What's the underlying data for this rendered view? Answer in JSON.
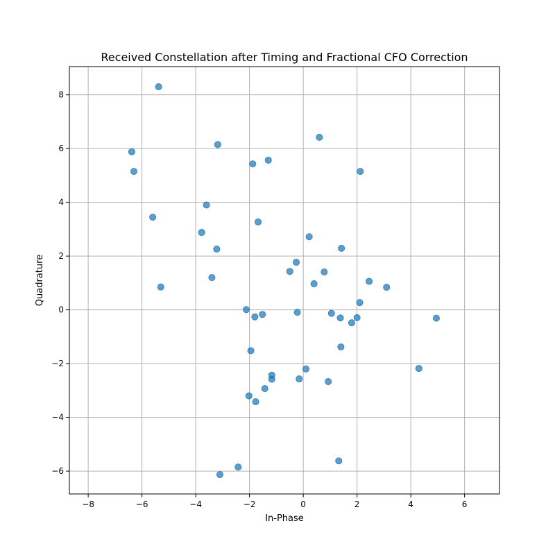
{
  "chart_data": {
    "type": "scatter",
    "title": "Received Constellation after Timing and Fractional CFO Correction",
    "xlabel": "In-Phase",
    "ylabel": "Quadrature",
    "xlim": [
      -8.7,
      7.3
    ],
    "ylim": [
      -6.85,
      9.05
    ],
    "xticks": [
      -8,
      -6,
      -4,
      -2,
      0,
      2,
      4,
      6
    ],
    "yticks": [
      -6,
      -4,
      -2,
      0,
      2,
      4,
      6,
      8
    ],
    "xtick_labels": [
      "−8",
      "−6",
      "−4",
      "−2",
      "0",
      "2",
      "4",
      "6"
    ],
    "ytick_labels": [
      "−6",
      "−4",
      "−2",
      "0",
      "2",
      "4",
      "6",
      "8"
    ],
    "grid": true,
    "marker_color": "#1f77b4",
    "series": [
      {
        "x": [
          -5.38,
          -6.38,
          -6.3,
          -3.18,
          -1.88,
          -1.3,
          0.6,
          2.12,
          -3.6,
          -5.6,
          -3.78,
          -1.68,
          -3.22,
          0.22,
          1.42,
          -0.26,
          -0.5,
          0.78,
          -3.4,
          -5.3,
          0.4,
          2.45,
          3.1,
          -2.12,
          -1.8,
          -1.52,
          -0.22,
          1.05,
          1.38,
          1.8,
          2.0,
          2.1,
          4.95,
          -1.95,
          1.4,
          0.1,
          4.3,
          -1.17,
          -1.17,
          -0.15,
          0.93,
          -1.43,
          -2.02,
          -1.77,
          1.32,
          -2.42,
          -3.1
        ],
        "y": [
          8.3,
          5.88,
          5.15,
          6.15,
          5.43,
          5.57,
          6.42,
          5.15,
          3.9,
          3.45,
          2.88,
          3.27,
          2.26,
          2.72,
          2.29,
          1.77,
          1.43,
          1.41,
          1.2,
          0.85,
          0.97,
          1.06,
          0.84,
          0.01,
          -0.26,
          -0.17,
          -0.09,
          -0.13,
          -0.3,
          -0.48,
          -0.29,
          0.27,
          -0.31,
          -1.52,
          -1.38,
          -2.2,
          -2.18,
          -2.43,
          -2.58,
          -2.57,
          -2.67,
          -2.93,
          -3.2,
          -3.42,
          -5.62,
          -5.85,
          -6.13
        ]
      }
    ]
  }
}
